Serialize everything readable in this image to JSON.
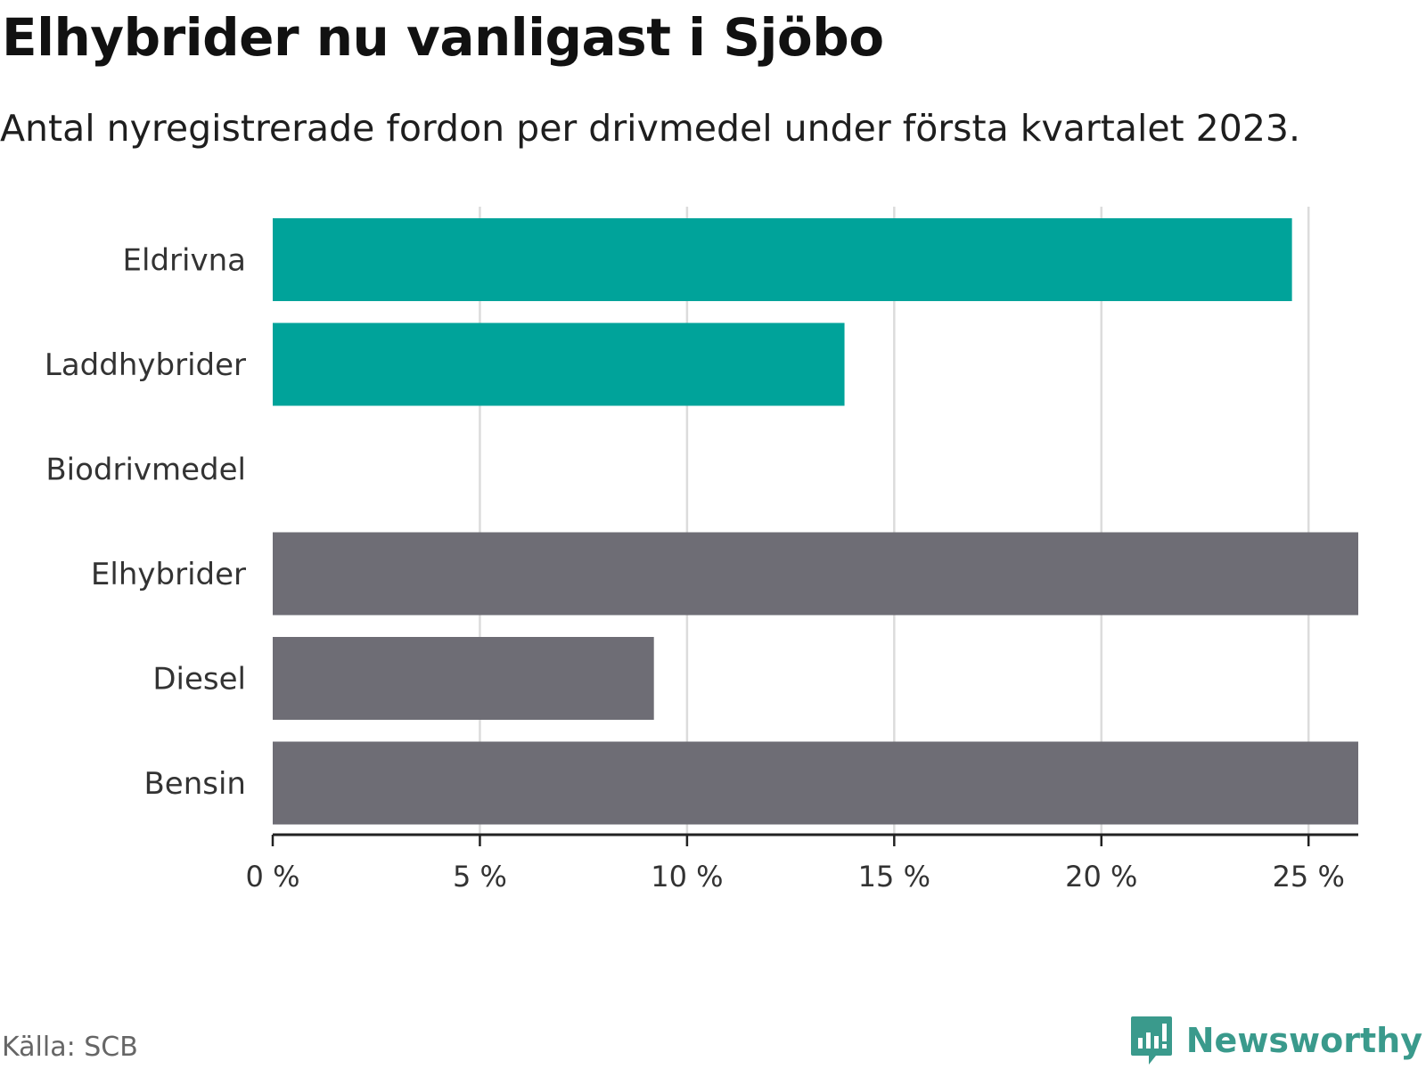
{
  "header": {
    "title": "Elhybrider nu vanligast i Sjöbo",
    "subtitle": "Antal nyregistrerade fordon per drivmedel under första kvartalet 2023."
  },
  "footer": {
    "source": "Källa: SCB",
    "brand": "Newsworthy",
    "brand_icon": "bar-chart-icon"
  },
  "colors": {
    "highlight": "#00a39a",
    "default": "#6e6d75",
    "grid": "#dcdcdc",
    "axis": "#222222",
    "brand": "#3a9a8c"
  },
  "chart_data": {
    "type": "bar",
    "orientation": "horizontal",
    "categories": [
      "Eldrivna",
      "Laddhybrider",
      "Biodrivmedel",
      "Elhybrider",
      "Diesel",
      "Bensin"
    ],
    "values": [
      24.6,
      13.8,
      0,
      26.2,
      9.2,
      26.2
    ],
    "highlighted": [
      true,
      true,
      true,
      false,
      false,
      false
    ],
    "xticks": [
      "0 %",
      "5 %",
      "10 %",
      "15 %",
      "20 %",
      "25 %"
    ],
    "xtick_values": [
      0,
      5,
      10,
      15,
      20,
      25
    ],
    "xlim": [
      0,
      26.2
    ],
    "grid": true
  }
}
